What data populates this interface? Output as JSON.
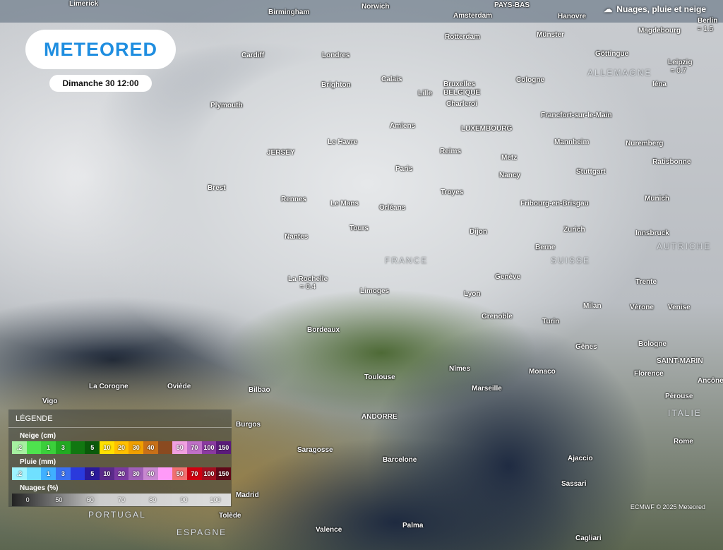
{
  "header": {
    "logo": "METEORED",
    "date": "Dimanche 30 12:00",
    "title": "Nuages, pluie et neige"
  },
  "cities": [
    {
      "n": "Limerick"
    },
    {
      "n": "Birmingham"
    },
    {
      "n": "Norwich"
    },
    {
      "n": "Amsterdam"
    },
    {
      "n": "PAYS-BAS"
    },
    {
      "n": "Hanovre"
    },
    {
      "n": "Berlin"
    },
    {
      "n": "Cardiff"
    },
    {
      "n": "Londres"
    },
    {
      "n": "Rotterdam"
    },
    {
      "n": "Münster"
    },
    {
      "n": "Magdebourg"
    },
    {
      "n": "Göttingue"
    },
    {
      "n": "Leipzig"
    },
    {
      "n": "Plymouth"
    },
    {
      "n": "Brighton"
    },
    {
      "n": "Calais"
    },
    {
      "n": "Lille"
    },
    {
      "n": "Bruxelles"
    },
    {
      "n": "BELGIQUE"
    },
    {
      "n": "Cologne"
    },
    {
      "n": "Charleroi"
    },
    {
      "n": "Iéna"
    },
    {
      "n": "Amiens"
    },
    {
      "n": "Francfort-sur-le-Main"
    },
    {
      "n": "LUXEMBOURG"
    },
    {
      "n": "JERSEY"
    },
    {
      "n": "Le Havre"
    },
    {
      "n": "Reims"
    },
    {
      "n": "Metz"
    },
    {
      "n": "Mannheim"
    },
    {
      "n": "Nuremberg"
    },
    {
      "n": "Paris"
    },
    {
      "n": "Nancy"
    },
    {
      "n": "Stuttgart"
    },
    {
      "n": "Ratisbonne"
    },
    {
      "n": "Brest"
    },
    {
      "n": "Troyes"
    },
    {
      "n": "Rennes"
    },
    {
      "n": "Le Mans"
    },
    {
      "n": "Orléans"
    },
    {
      "n": "Fribourg-en-Brisgau"
    },
    {
      "n": "Munich"
    },
    {
      "n": "Tours"
    },
    {
      "n": "Zurich"
    },
    {
      "n": "Dijon"
    },
    {
      "n": "Innsbruck"
    },
    {
      "n": "Nantes"
    },
    {
      "n": "Berne"
    },
    {
      "n": "La Rochelle"
    },
    {
      "n": "Genève"
    },
    {
      "n": "Trente"
    },
    {
      "n": "Limoges"
    },
    {
      "n": "Lyon"
    },
    {
      "n": "Milan"
    },
    {
      "n": "Vérone"
    },
    {
      "n": "Venise"
    },
    {
      "n": "Grenoble"
    },
    {
      "n": "Turin"
    },
    {
      "n": "Bordeaux"
    },
    {
      "n": "Bologne"
    },
    {
      "n": "Gênes"
    },
    {
      "n": "Monaco"
    },
    {
      "n": "Florence"
    },
    {
      "n": "Nîmes"
    },
    {
      "n": "Marseille"
    },
    {
      "n": "Toulouse"
    },
    {
      "n": "SAINT-MARIN"
    },
    {
      "n": "Ancône"
    },
    {
      "n": "La Corogne"
    },
    {
      "n": "Oviède"
    },
    {
      "n": "Bilbao"
    },
    {
      "n": "Pérouse"
    },
    {
      "n": "Vigo"
    },
    {
      "n": "Burgos"
    },
    {
      "n": "ANDORRE"
    },
    {
      "n": "Saragosse"
    },
    {
      "n": "Ajaccio"
    },
    {
      "n": "Rome"
    },
    {
      "n": "Barcelone"
    },
    {
      "n": "Sassari"
    },
    {
      "n": "Madrid"
    },
    {
      "n": "Tolède"
    },
    {
      "n": "Valence"
    },
    {
      "n": "Palma"
    },
    {
      "n": "Cagliari"
    }
  ],
  "countries": [
    "ALLEMAGNE",
    "FRANCE",
    "SUISSE",
    "AUTRICHE",
    "ITALIE",
    "PORTUGAL",
    "ESPAGNE"
  ],
  "precip": {
    "berlin": "1.5",
    "leipzig": "0.7",
    "la_rochelle": "0.4"
  },
  "legend": {
    "title": "LÉGENDE",
    "snow": {
      "label": "Neige (cm)",
      "ticks": [
        ".2",
        "",
        "1",
        "3",
        "",
        "5",
        "10",
        "20",
        "30",
        "40",
        "",
        "50",
        "70",
        "100",
        "150"
      ],
      "colors": [
        "#a6f0a0",
        "#4ee34e",
        "#3bcf3b",
        "#22aa22",
        "#117711",
        "#0a5a0a",
        "#ffe000",
        "#ffc000",
        "#f0a000",
        "#c87018",
        "#8a4a20",
        "#f0a0e0",
        "#c070c8",
        "#8a3aa0",
        "#5a1a7a"
      ]
    },
    "rain": {
      "label": "Pluie (mm)",
      "ticks": [
        ".2",
        "",
        "1",
        "3",
        "",
        "5",
        "10",
        "20",
        "30",
        "40",
        "",
        "50",
        "70",
        "100",
        "150"
      ],
      "colors": [
        "#9ff4ff",
        "#70e0ff",
        "#40b0ff",
        "#3a70f0",
        "#2a3adc",
        "#2a1a9a",
        "#5a2a8a",
        "#7a3aa0",
        "#a060b8",
        "#c888d0",
        "#ff9af8",
        "#f07070",
        "#d00010",
        "#a01020",
        "#600818"
      ]
    },
    "clouds": {
      "label": "Nuages (%)",
      "ticks": [
        "0",
        "50",
        "60",
        "70",
        "80",
        "90",
        "100"
      ]
    },
    "credit": "ECMWF © 2025 Meteored"
  }
}
